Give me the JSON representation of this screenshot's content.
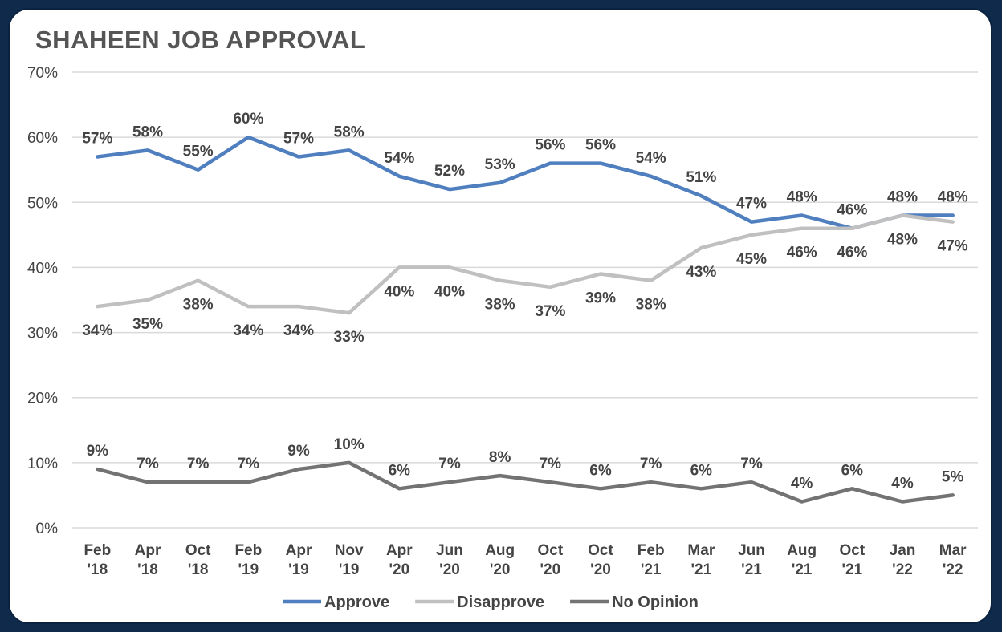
{
  "chart_data": {
    "type": "line",
    "title": "SHAHEEN JOB APPROVAL",
    "x": [
      [
        "Feb",
        "'18"
      ],
      [
        "Apr",
        "'18"
      ],
      [
        "Oct",
        "'18"
      ],
      [
        "Feb",
        "'19"
      ],
      [
        "Apr",
        "'19"
      ],
      [
        "Nov",
        "'19"
      ],
      [
        "Apr",
        "'20"
      ],
      [
        "Jun",
        "'20"
      ],
      [
        "Aug",
        "'20"
      ],
      [
        "Oct",
        "'20"
      ],
      [
        "Oct",
        "'20"
      ],
      [
        "Feb",
        "'21"
      ],
      [
        "Mar",
        "'21"
      ],
      [
        "Jun",
        "'21"
      ],
      [
        "Aug",
        "'21"
      ],
      [
        "Oct",
        "'21"
      ],
      [
        "Jan",
        "'22"
      ],
      [
        "Mar",
        "'22"
      ]
    ],
    "ylim": [
      0,
      70
    ],
    "yticks": [
      "0%",
      "10%",
      "20%",
      "30%",
      "40%",
      "50%",
      "60%",
      "70%"
    ],
    "grid": true,
    "legend_position": "bottom",
    "series": [
      {
        "name": "Approve",
        "color": "#4f7fbf",
        "label_position": "above",
        "values": [
          57,
          58,
          55,
          60,
          57,
          58,
          54,
          52,
          53,
          56,
          56,
          54,
          51,
          47,
          48,
          46,
          48,
          48
        ]
      },
      {
        "name": "Disapprove",
        "color": "#c0c0c0",
        "label_position": "below",
        "values": [
          34,
          35,
          38,
          34,
          34,
          33,
          40,
          40,
          38,
          37,
          39,
          38,
          43,
          45,
          46,
          46,
          48,
          47
        ]
      },
      {
        "name": "No Opinion",
        "color": "#737373",
        "label_position": "above",
        "values": [
          9,
          7,
          7,
          7,
          9,
          10,
          6,
          7,
          8,
          7,
          6,
          7,
          6,
          7,
          4,
          6,
          4,
          5
        ]
      }
    ]
  }
}
